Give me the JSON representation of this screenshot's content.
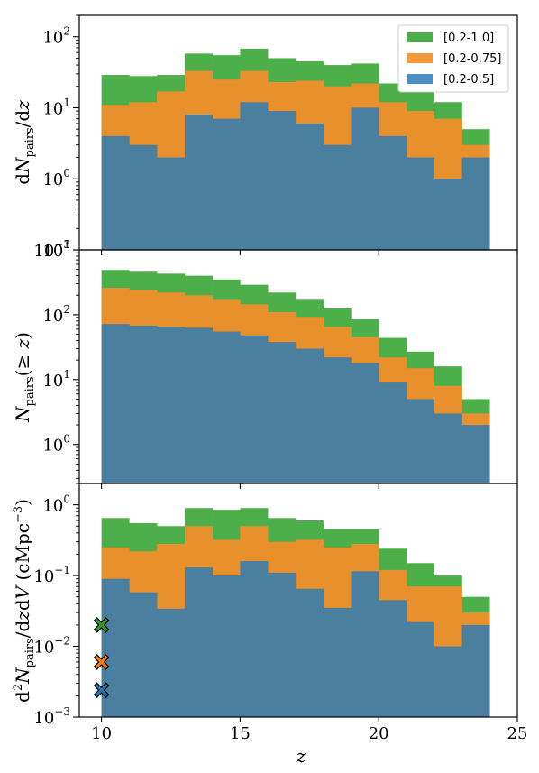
{
  "chart_data": [
    {
      "type": "bar",
      "panel": "top",
      "ylabel": "dN_pairs/dz",
      "yscale": "log",
      "ylim": [
        0.1,
        200
      ],
      "yticks": [
        {
          "base": "10",
          "exp": "−1"
        },
        {
          "base": "10",
          "exp": "0"
        },
        {
          "base": "10",
          "exp": "1"
        },
        {
          "base": "10",
          "exp": "2"
        }
      ],
      "x_edges": [
        10,
        11,
        12,
        13,
        14,
        15,
        16,
        17,
        18,
        19,
        20,
        21,
        22,
        23,
        24
      ],
      "series": [
        {
          "name": "[0.2-1.0]",
          "color": "#4daf4a",
          "values": [
            29,
            28,
            29,
            58,
            55,
            68,
            50,
            45,
            40,
            42,
            22,
            18,
            12,
            5
          ]
        },
        {
          "name": "[0.2-0.75]",
          "color": "#e8902b",
          "values": [
            11,
            12,
            17,
            33,
            25,
            33,
            23,
            24,
            20,
            22,
            12,
            9,
            7,
            3
          ]
        },
        {
          "name": "[0.2-0.5]",
          "color": "#4a7fa0",
          "values": [
            4,
            3,
            2,
            8,
            7,
            12,
            9,
            6,
            3,
            10,
            4,
            2,
            1,
            2
          ]
        }
      ]
    },
    {
      "type": "bar",
      "panel": "middle",
      "ylabel": "N_pairs(≥ z)",
      "yscale": "log",
      "ylim": [
        0.25,
        1000
      ],
      "yticks": [
        {
          "base": "10",
          "exp": "0"
        },
        {
          "base": "10",
          "exp": "1"
        },
        {
          "base": "10",
          "exp": "2"
        },
        {
          "base": "10",
          "exp": "3"
        }
      ],
      "x_edges": [
        10,
        11,
        12,
        13,
        14,
        15,
        16,
        17,
        18,
        19,
        20,
        21,
        22,
        23,
        24
      ],
      "series": [
        {
          "name": "[0.2-1.0]",
          "color": "#4daf4a",
          "values": [
            490,
            460,
            430,
            400,
            350,
            290,
            220,
            170,
            125,
            85,
            44,
            27,
            16,
            5
          ]
        },
        {
          "name": "[0.2-0.75]",
          "color": "#e8902b",
          "values": [
            260,
            240,
            220,
            200,
            170,
            145,
            110,
            90,
            65,
            45,
            22,
            15,
            8,
            3
          ]
        },
        {
          "name": "[0.2-0.5]",
          "color": "#4a7fa0",
          "values": [
            72,
            68,
            65,
            63,
            55,
            48,
            38,
            30,
            22,
            18,
            9,
            5,
            3,
            2
          ]
        }
      ]
    },
    {
      "type": "bar",
      "panel": "bottom",
      "ylabel": "d²N_pairs/dzdV (cMpc⁻³)",
      "xlabel": "z",
      "yscale": "log",
      "ylim": [
        0.001,
        2
      ],
      "xlim": [
        9.2,
        25
      ],
      "xticks": [
        "10",
        "15",
        "20",
        "25"
      ],
      "yticks": [
        {
          "base": "10",
          "exp": "−3"
        },
        {
          "base": "10",
          "exp": "−2"
        },
        {
          "base": "10",
          "exp": "−1"
        },
        {
          "base": "10",
          "exp": "0"
        }
      ],
      "x_edges": [
        10,
        11,
        12,
        13,
        14,
        15,
        16,
        17,
        18,
        19,
        20,
        21,
        22,
        23,
        24
      ],
      "series": [
        {
          "name": "[0.2-1.0]",
          "color": "#4daf4a",
          "values": [
            0.65,
            0.55,
            0.5,
            0.9,
            0.85,
            0.9,
            0.65,
            0.6,
            0.45,
            0.45,
            0.24,
            0.15,
            0.1,
            0.05
          ]
        },
        {
          "name": "[0.2-0.75]",
          "color": "#e8902b",
          "values": [
            0.25,
            0.22,
            0.28,
            0.5,
            0.32,
            0.5,
            0.3,
            0.32,
            0.25,
            0.28,
            0.12,
            0.07,
            0.07,
            0.03
          ]
        },
        {
          "name": "[0.2-0.5]",
          "color": "#4a7fa0",
          "values": [
            0.09,
            0.058,
            0.034,
            0.13,
            0.1,
            0.16,
            0.11,
            0.065,
            0.035,
            0.115,
            0.045,
            0.022,
            0.01,
            0.02
          ]
        }
      ],
      "markers": [
        {
          "x": 10,
          "y": 0.02,
          "color": "#2ca02c"
        },
        {
          "x": 10,
          "y": 0.006,
          "color": "#ff7f0e"
        },
        {
          "x": 10,
          "y": 0.0024,
          "color": "#1f77b4"
        }
      ]
    }
  ],
  "legend": [
    {
      "label": "[0.2-1.0]",
      "color": "#4daf4a"
    },
    {
      "label": "[0.2-0.75]",
      "color": "#f59a37"
    },
    {
      "label": "[0.2-0.5]",
      "color": "#4a90c4"
    }
  ]
}
